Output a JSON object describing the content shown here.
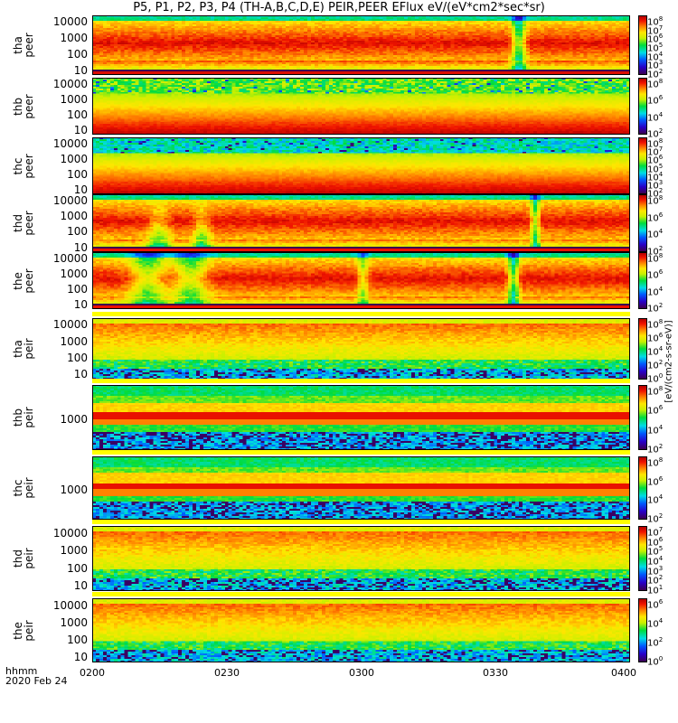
{
  "title": "P5, P1, P2, P3, P4 (TH-A,B,C,D,E) PEIR,PEER EFlux eV/(eV*cm2*sec*sr)",
  "colorbar_unit": "[eV/(cm2-s-sr-eV)]",
  "footer": {
    "time_label": "hhmm",
    "date": "2020 Feb 24"
  },
  "chart_data": {
    "type": "heatmap",
    "title": "P5, P1, P2, P3, P4 (TH-A,B,C,D,E) PEIR,PEER EFlux eV/(eV*cm2*sec*sr)",
    "xlabel": "hhmm",
    "x_ticks": [
      "0200",
      "0230",
      "0300",
      "0330",
      "0400"
    ],
    "xlim": [
      "0200",
      "0400"
    ],
    "colormap": "rainbow",
    "panels": [
      {
        "label1": "tha",
        "label2": "peer",
        "kind": "peer_a",
        "ylim": [
          5,
          25000
        ],
        "yticks": [
          "10000",
          "1000",
          "100",
          "10"
        ],
        "cb": [
          "8",
          "7",
          "6",
          "5",
          "4",
          "3",
          "2"
        ]
      },
      {
        "label1": "thb",
        "label2": "peer",
        "kind": "peer_b",
        "ylim": [
          5,
          25000
        ],
        "yticks": [
          "10000",
          "1000",
          "100",
          "10"
        ],
        "cb": [
          "8",
          "6",
          "4",
          "2"
        ]
      },
      {
        "label1": "thc",
        "label2": "peer",
        "kind": "peer_c",
        "ylim": [
          5,
          25000
        ],
        "yticks": [
          "10000",
          "1000",
          "100",
          "10"
        ],
        "cb": [
          "8",
          "7",
          "6",
          "5",
          "4",
          "3",
          "2"
        ]
      },
      {
        "label1": "thd",
        "label2": "peer",
        "kind": "peer_d",
        "ylim": [
          5,
          25000
        ],
        "yticks": [
          "10000",
          "1000",
          "100",
          "10"
        ],
        "cb": [
          "8",
          "6",
          "4",
          "2"
        ]
      },
      {
        "label1": "the",
        "label2": "peer",
        "kind": "peer_e",
        "ylim": [
          5,
          25000
        ],
        "yticks": [
          "10000",
          "1000",
          "100",
          "10"
        ],
        "cb": [
          "8",
          "6",
          "4",
          "2"
        ]
      },
      {
        "label1": "tha",
        "label2": "peir",
        "kind": "peir",
        "ylim": [
          5,
          25000
        ],
        "yticks": [
          "10000",
          "1000",
          "100",
          "10"
        ],
        "cb": [
          "8",
          "6",
          "4",
          "2",
          "0"
        ]
      },
      {
        "label1": "thb",
        "label2": "peir",
        "kind": "peir_band",
        "ylim": [
          60,
          25000
        ],
        "yticks": [
          "1000"
        ],
        "cb": [
          "8",
          "6",
          "4",
          "2"
        ]
      },
      {
        "label1": "thc",
        "label2": "peir",
        "kind": "peir_band",
        "ylim": [
          60,
          25000
        ],
        "yticks": [
          "1000"
        ],
        "cb": [
          "8",
          "6",
          "4",
          "2"
        ]
      },
      {
        "label1": "thd",
        "label2": "peir",
        "kind": "peir",
        "ylim": [
          5,
          25000
        ],
        "yticks": [
          "10000",
          "1000",
          "100",
          "10"
        ],
        "cb": [
          "7",
          "6",
          "5",
          "4",
          "3",
          "2",
          "1"
        ]
      },
      {
        "label1": "the",
        "label2": "peir",
        "kind": "peir",
        "ylim": [
          5,
          25000
        ],
        "yticks": [
          "10000",
          "1000",
          "100",
          "10"
        ],
        "cb": [
          "6",
          "4",
          "2",
          "0"
        ]
      }
    ]
  }
}
